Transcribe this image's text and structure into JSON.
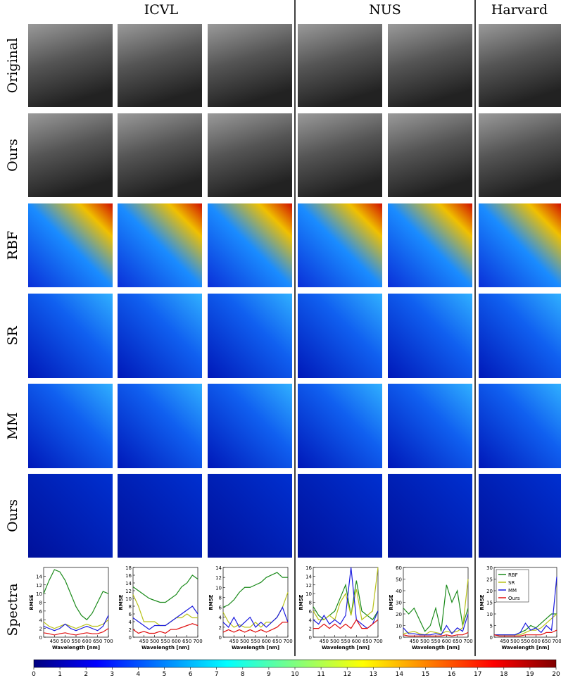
{
  "headers": [
    "ICVL",
    "NUS",
    "Harvard"
  ],
  "row_labels": [
    "Original",
    "Ours",
    "RBF",
    "SR",
    "MM",
    "Ours",
    "Spectra"
  ],
  "chart_data": [
    {
      "type": "line",
      "xlabel": "Wavelength [nm]",
      "ylabel": "RMSE",
      "x": [
        400,
        425,
        450,
        475,
        500,
        525,
        550,
        575,
        600,
        625,
        650,
        675,
        700
      ],
      "xlim": [
        400,
        700
      ],
      "xticks": [
        450,
        500,
        550,
        600,
        650,
        700
      ],
      "ylim": [
        0,
        16
      ],
      "yticks": [
        0,
        2,
        4,
        6,
        8,
        10,
        12,
        14
      ],
      "series": [
        {
          "color": "#1a8a1a",
          "values": [
            10,
            13,
            15.5,
            15,
            13,
            10,
            7,
            5,
            4,
            5.5,
            8,
            10.5,
            10
          ]
        },
        {
          "color": "#b8c21a",
          "values": [
            3.5,
            2.5,
            2,
            2.5,
            3,
            2.5,
            2,
            2.5,
            3,
            2.5,
            2.5,
            3,
            4
          ]
        },
        {
          "color": "#1a1adf",
          "values": [
            2.5,
            2,
            1.5,
            2,
            3,
            2,
            1.5,
            2,
            2.5,
            2,
            1.5,
            2.5,
            5
          ]
        },
        {
          "color": "#e01010",
          "values": [
            1,
            0.8,
            0.5,
            0.8,
            1,
            0.7,
            0.5,
            0.8,
            1,
            0.8,
            0.8,
            1.2,
            2
          ]
        }
      ]
    },
    {
      "type": "line",
      "xlabel": "Wavelength [nm]",
      "ylabel": "RMSE",
      "x": [
        400,
        425,
        450,
        475,
        500,
        525,
        550,
        575,
        600,
        625,
        650,
        675,
        700
      ],
      "xlim": [
        400,
        700
      ],
      "xticks": [
        450,
        500,
        550,
        600,
        650,
        700
      ],
      "ylim": [
        0,
        18
      ],
      "yticks": [
        0,
        2,
        4,
        6,
        8,
        10,
        12,
        14,
        16,
        18
      ],
      "series": [
        {
          "color": "#1a8a1a",
          "values": [
            13,
            12,
            11,
            10,
            9.5,
            9,
            9,
            10,
            11,
            13,
            14,
            16,
            15
          ]
        },
        {
          "color": "#b8c21a",
          "values": [
            11,
            8,
            4,
            4,
            4,
            3,
            3,
            4,
            5,
            5,
            6,
            5,
            5
          ]
        },
        {
          "color": "#1a1adf",
          "values": [
            5,
            4,
            3,
            2,
            3,
            3,
            3,
            4,
            5,
            6,
            7,
            8,
            6
          ]
        },
        {
          "color": "#e01010",
          "values": [
            2,
            1,
            1.5,
            1,
            1,
            1.5,
            1,
            2,
            2,
            2.5,
            3,
            3.5,
            3
          ]
        }
      ]
    },
    {
      "type": "line",
      "xlabel": "Wavelength [nm]",
      "ylabel": "RMSE",
      "x": [
        400,
        425,
        450,
        475,
        500,
        525,
        550,
        575,
        600,
        625,
        650,
        675,
        700
      ],
      "xlim": [
        400,
        700
      ],
      "xticks": [
        450,
        500,
        550,
        600,
        650,
        700
      ],
      "ylim": [
        0,
        14
      ],
      "yticks": [
        0,
        2,
        4,
        6,
        8,
        10,
        12,
        14
      ],
      "series": [
        {
          "color": "#1a8a1a",
          "values": [
            6,
            6.5,
            7.5,
            9,
            10,
            10,
            10.5,
            11,
            12,
            12.5,
            13,
            12,
            12
          ]
        },
        {
          "color": "#b8c21a",
          "values": [
            5,
            3,
            2,
            2.5,
            2,
            2,
            3,
            2,
            3,
            3,
            4,
            6,
            9
          ]
        },
        {
          "color": "#1a1adf",
          "values": [
            3,
            2,
            4,
            2,
            3,
            4,
            2,
            3,
            2,
            3,
            4,
            6,
            3
          ]
        },
        {
          "color": "#e01010",
          "values": [
            1,
            1.5,
            1,
            1.5,
            1,
            1.5,
            1,
            1.5,
            1,
            1.5,
            2,
            3,
            3
          ]
        }
      ]
    },
    {
      "type": "line",
      "xlabel": "Wavelength [nm]",
      "ylabel": "RMSE",
      "x": [
        400,
        425,
        450,
        475,
        500,
        525,
        550,
        575,
        600,
        625,
        650,
        675,
        700
      ],
      "xlim": [
        400,
        700
      ],
      "xticks": [
        450,
        500,
        550,
        600,
        650,
        700
      ],
      "ylim": [
        0,
        16
      ],
      "yticks": [
        0,
        2,
        4,
        6,
        8,
        10,
        12,
        14,
        16
      ],
      "series": [
        {
          "color": "#1a8a1a",
          "values": [
            7,
            5,
            4,
            5,
            6,
            9,
            12,
            5,
            13,
            6,
            5,
            4,
            6
          ]
        },
        {
          "color": "#b8c21a",
          "values": [
            6,
            4,
            4,
            5,
            4,
            8,
            10,
            5,
            11,
            4,
            5,
            6,
            16
          ]
        },
        {
          "color": "#1a1adf",
          "values": [
            4,
            3,
            5,
            3,
            4,
            3,
            5,
            16,
            4,
            3,
            2,
            3,
            6
          ]
        },
        {
          "color": "#e01010",
          "values": [
            2,
            2,
            3,
            2,
            3,
            2,
            3,
            2,
            4,
            2,
            2,
            3,
            4
          ]
        }
      ]
    },
    {
      "type": "line",
      "xlabel": "Wavelength [nm]",
      "ylabel": "RMSE",
      "x": [
        400,
        425,
        450,
        475,
        500,
        525,
        550,
        575,
        600,
        625,
        650,
        675,
        700
      ],
      "xlim": [
        400,
        700
      ],
      "xticks": [
        450,
        500,
        550,
        600,
        650,
        700
      ],
      "ylim": [
        0,
        60
      ],
      "yticks": [
        0,
        10,
        20,
        30,
        40,
        50,
        60
      ],
      "series": [
        {
          "color": "#1a8a1a",
          "values": [
            25,
            20,
            25,
            15,
            5,
            10,
            25,
            5,
            45,
            30,
            40,
            10,
            25
          ]
        },
        {
          "color": "#b8c21a",
          "values": [
            3,
            4,
            5,
            3,
            2,
            5,
            4,
            3,
            5,
            4,
            5,
            8,
            50
          ]
        },
        {
          "color": "#1a1adf",
          "values": [
            8,
            3,
            3,
            2,
            2,
            2,
            3,
            2,
            10,
            3,
            8,
            5,
            20
          ]
        },
        {
          "color": "#e01010",
          "values": [
            2,
            1,
            1,
            1,
            1,
            1,
            1,
            1,
            2,
            1,
            2,
            2,
            4
          ]
        }
      ]
    },
    {
      "type": "line",
      "xlabel": "Wavelength [nm]",
      "ylabel": "RMSE",
      "x": [
        400,
        425,
        450,
        475,
        500,
        525,
        550,
        575,
        600,
        625,
        650,
        675,
        700
      ],
      "xlim": [
        400,
        700
      ],
      "xticks": [
        450,
        500,
        550,
        600,
        650,
        700
      ],
      "ylim": [
        0,
        30
      ],
      "yticks": [
        0,
        5,
        10,
        15,
        20,
        25,
        30
      ],
      "legend": "upper left",
      "series": [
        {
          "name": "RBF",
          "color": "#1a8a1a",
          "values": [
            1,
            1,
            1,
            1,
            1,
            2,
            3,
            5,
            4,
            6,
            8,
            10,
            10
          ]
        },
        {
          "name": "SR",
          "color": "#b8c21a",
          "values": [
            1,
            1,
            1,
            1,
            1,
            1,
            2,
            3,
            3,
            4,
            6,
            8,
            10
          ]
        },
        {
          "name": "MM",
          "color": "#1a1adf",
          "values": [
            1,
            1,
            1,
            1,
            1,
            2,
            6,
            3,
            4,
            2,
            5,
            3,
            26
          ]
        },
        {
          "name": "Ours",
          "color": "#e01010",
          "values": [
            1,
            0.5,
            0.5,
            0.5,
            0.5,
            0.5,
            1,
            1,
            1,
            1,
            2,
            2,
            3
          ]
        }
      ]
    }
  ],
  "colorbar": {
    "lim": [
      0,
      20
    ],
    "ticks": [
      0,
      1,
      2,
      3,
      4,
      5,
      6,
      7,
      8,
      9,
      10,
      11,
      12,
      13,
      14,
      15,
      16,
      17,
      18,
      19,
      20
    ]
  }
}
